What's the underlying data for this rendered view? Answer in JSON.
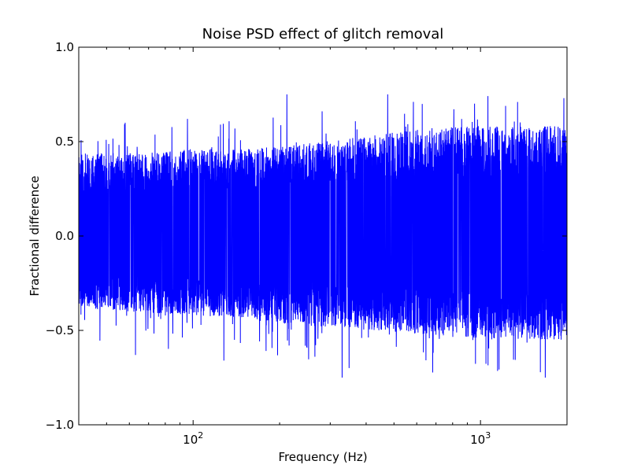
{
  "chart_data": {
    "type": "line",
    "title": "Noise PSD effect of glitch removal",
    "xlabel": "Frequency (Hz)",
    "ylabel": "Fractional difference",
    "xscale": "log",
    "xlim": [
      40,
      2000
    ],
    "ylim": [
      -1.0,
      1.0
    ],
    "yticks": [
      -1.0,
      -0.5,
      0.0,
      0.5,
      1.0
    ],
    "ytick_labels": [
      "−1.0",
      "−0.5",
      "0.0",
      "0.5",
      "1.0"
    ],
    "xticks": [
      100,
      1000
    ],
    "xtick_labels": [
      {
        "base": "10",
        "exp": "2"
      },
      {
        "base": "10",
        "exp": "3"
      }
    ],
    "grid": false,
    "legend": "none",
    "series": [
      {
        "color": "#0000ff",
        "envelope": {
          "x": [
            40,
            50,
            70,
            100,
            150,
            200,
            300,
            500,
            700,
            1000,
            1500,
            2000
          ],
          "typical_upper": [
            0.4,
            0.4,
            0.4,
            0.42,
            0.42,
            0.43,
            0.46,
            0.5,
            0.52,
            0.53,
            0.53,
            0.53
          ],
          "typical_lower": [
            -0.35,
            -0.36,
            -0.37,
            -0.38,
            -0.4,
            -0.42,
            -0.44,
            -0.46,
            -0.48,
            -0.5,
            -0.5,
            -0.5
          ],
          "max": 0.75,
          "min": -0.75
        },
        "peaks": [
          {
            "x": 212,
            "y": 0.75
          },
          {
            "x": 330,
            "y": -0.75
          },
          {
            "x": 1680,
            "y": -0.75
          },
          {
            "x": 1950,
            "y": 0.73
          },
          {
            "x": 63,
            "y": -0.63
          },
          {
            "x": 58,
            "y": 0.6
          },
          {
            "x": 128,
            "y": -0.66
          }
        ]
      }
    ]
  }
}
